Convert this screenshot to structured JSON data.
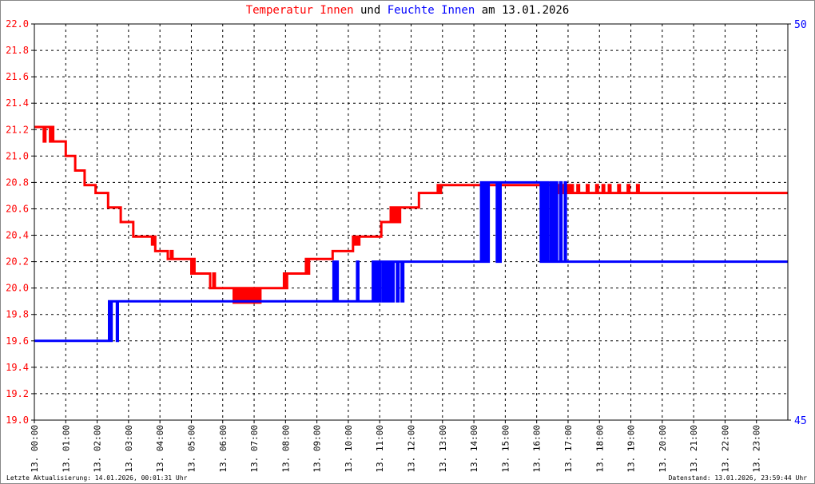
{
  "title": {
    "part1": "Temperatur Innen",
    "part2": " und ",
    "part3": "Feuchte Innen",
    "part4": " am 13.01.2026",
    "color_red": "#ff0000",
    "color_blue": "#0000ff",
    "color_text": "#000000"
  },
  "footer": {
    "left": "Letzte Aktualisierung: 14.01.2026, 00:01:31 Uhr",
    "right": "Datenstand: 13.01.2026, 23:59:44 Uhr"
  },
  "chart_data": {
    "type": "line",
    "xlim": [
      0,
      24
    ],
    "y_left": {
      "min": 19.0,
      "max": 22.0,
      "ticks": [
        "19.0",
        "19.2",
        "19.4",
        "19.6",
        "19.8",
        "20.0",
        "20.2",
        "20.4",
        "20.6",
        "20.8",
        "21.0",
        "21.2",
        "21.4",
        "21.6",
        "21.8",
        "22.0"
      ],
      "color": "#ff0000"
    },
    "y_right": {
      "min": 45,
      "max": 50,
      "ticks": [
        "45",
        "50"
      ],
      "color": "#0000ff"
    },
    "x_ticks": [
      "13. 00:00",
      "13. 01:00",
      "13. 02:00",
      "13. 03:00",
      "13. 04:00",
      "13. 05:00",
      "13. 06:00",
      "13. 07:00",
      "13. 08:00",
      "13. 09:00",
      "13. 10:00",
      "13. 11:00",
      "13. 12:00",
      "13. 13:00",
      "13. 14:00",
      "13. 15:00",
      "13. 16:00",
      "13. 17:00",
      "13. 18:00",
      "13. 19:00",
      "13. 20:00",
      "13. 21:00",
      "13. 22:00",
      "13. 23:00"
    ],
    "grid": true,
    "series": [
      {
        "name": "Temperatur Innen",
        "axis": "left",
        "color": "#ff0000",
        "points": [
          [
            0,
            21.22
          ],
          [
            0.3,
            21.22
          ],
          [
            0.3,
            21.11
          ],
          [
            0.35,
            21.22
          ],
          [
            0.45,
            21.22
          ],
          [
            0.5,
            21.11
          ],
          [
            0.55,
            21.22
          ],
          [
            0.6,
            21.11
          ],
          [
            0.9,
            21.11
          ],
          [
            1.0,
            21.0
          ],
          [
            1.2,
            21.0
          ],
          [
            1.3,
            20.89
          ],
          [
            1.55,
            20.89
          ],
          [
            1.6,
            20.78
          ],
          [
            1.9,
            20.78
          ],
          [
            1.95,
            20.72
          ],
          [
            2.3,
            20.72
          ],
          [
            2.35,
            20.61
          ],
          [
            2.7,
            20.61
          ],
          [
            2.75,
            20.5
          ],
          [
            3.1,
            20.5
          ],
          [
            3.15,
            20.39
          ],
          [
            3.7,
            20.39
          ],
          [
            3.75,
            20.33
          ],
          [
            3.8,
            20.39
          ],
          [
            3.85,
            20.28
          ],
          [
            4.2,
            20.28
          ],
          [
            4.25,
            20.22
          ],
          [
            4.35,
            20.28
          ],
          [
            4.4,
            20.22
          ],
          [
            4.95,
            20.22
          ],
          [
            5.0,
            20.11
          ],
          [
            5.05,
            20.22
          ],
          [
            5.1,
            20.11
          ],
          [
            5.5,
            20.11
          ],
          [
            5.6,
            20.0
          ],
          [
            5.7,
            20.11
          ],
          [
            5.75,
            20.0
          ],
          [
            6.3,
            20.0
          ],
          [
            6.35,
            19.89
          ],
          [
            6.4,
            20.0
          ],
          [
            6.45,
            19.89
          ],
          [
            6.5,
            20.0
          ],
          [
            6.55,
            19.89
          ],
          [
            6.6,
            20.0
          ],
          [
            6.65,
            19.89
          ],
          [
            6.7,
            20.0
          ],
          [
            6.75,
            19.89
          ],
          [
            6.8,
            20.0
          ],
          [
            6.85,
            19.89
          ],
          [
            6.9,
            20.0
          ],
          [
            6.95,
            19.89
          ],
          [
            7.0,
            20.0
          ],
          [
            7.05,
            19.89
          ],
          [
            7.1,
            20.0
          ],
          [
            7.15,
            19.89
          ],
          [
            7.2,
            20.0
          ],
          [
            7.25,
            20.0
          ],
          [
            7.9,
            20.0
          ],
          [
            7.95,
            20.11
          ],
          [
            8.0,
            20.0
          ],
          [
            8.05,
            20.11
          ],
          [
            8.6,
            20.11
          ],
          [
            8.65,
            20.22
          ],
          [
            8.7,
            20.11
          ],
          [
            8.75,
            20.22
          ],
          [
            9.45,
            20.22
          ],
          [
            9.5,
            20.28
          ],
          [
            10.1,
            20.28
          ],
          [
            10.15,
            20.39
          ],
          [
            10.2,
            20.33
          ],
          [
            10.25,
            20.39
          ],
          [
            10.3,
            20.33
          ],
          [
            10.35,
            20.39
          ],
          [
            11.0,
            20.39
          ],
          [
            11.05,
            20.5
          ],
          [
            11.3,
            20.5
          ],
          [
            11.35,
            20.61
          ],
          [
            11.4,
            20.5
          ],
          [
            11.45,
            20.61
          ],
          [
            11.5,
            20.5
          ],
          [
            11.55,
            20.61
          ],
          [
            11.6,
            20.5
          ],
          [
            11.65,
            20.61
          ],
          [
            12.2,
            20.61
          ],
          [
            12.25,
            20.72
          ],
          [
            12.8,
            20.72
          ],
          [
            12.85,
            20.78
          ],
          [
            12.9,
            20.72
          ],
          [
            12.95,
            20.78
          ],
          [
            16.6,
            20.78
          ],
          [
            16.65,
            20.72
          ],
          [
            16.7,
            20.78
          ],
          [
            16.75,
            20.72
          ],
          [
            16.8,
            20.78
          ],
          [
            16.85,
            20.72
          ],
          [
            16.9,
            20.78
          ],
          [
            16.95,
            20.72
          ],
          [
            17.0,
            20.78
          ],
          [
            17.05,
            20.72
          ],
          [
            17.1,
            20.78
          ],
          [
            17.15,
            20.72
          ],
          [
            17.3,
            20.78
          ],
          [
            17.35,
            20.72
          ],
          [
            17.6,
            20.78
          ],
          [
            17.65,
            20.72
          ],
          [
            17.9,
            20.78
          ],
          [
            17.95,
            20.72
          ],
          [
            18.1,
            20.78
          ],
          [
            18.15,
            20.72
          ],
          [
            18.3,
            20.78
          ],
          [
            18.35,
            20.72
          ],
          [
            18.6,
            20.78
          ],
          [
            18.65,
            20.72
          ],
          [
            18.9,
            20.78
          ],
          [
            18.95,
            20.72
          ],
          [
            19.2,
            20.78
          ],
          [
            19.25,
            20.72
          ],
          [
            24,
            20.72
          ]
        ]
      },
      {
        "name": "Feuchte Innen",
        "axis": "right",
        "color": "#0000ff",
        "points": [
          [
            0,
            46.0
          ],
          [
            2.35,
            46.0
          ],
          [
            2.38,
            46.5
          ],
          [
            2.42,
            46.0
          ],
          [
            2.46,
            46.5
          ],
          [
            2.6,
            46.5
          ],
          [
            2.63,
            46.0
          ],
          [
            2.66,
            46.5
          ],
          [
            9.5,
            46.5
          ],
          [
            9.53,
            47.0
          ],
          [
            9.58,
            46.5
          ],
          [
            9.62,
            47.0
          ],
          [
            9.66,
            46.5
          ],
          [
            10.25,
            46.5
          ],
          [
            10.28,
            47.0
          ],
          [
            10.32,
            46.5
          ],
          [
            10.75,
            46.5
          ],
          [
            10.78,
            47.0
          ],
          [
            10.82,
            46.5
          ],
          [
            10.86,
            47.0
          ],
          [
            10.9,
            46.5
          ],
          [
            10.94,
            47.0
          ],
          [
            10.98,
            46.5
          ],
          [
            11.02,
            47.0
          ],
          [
            11.1,
            46.5
          ],
          [
            11.14,
            47.0
          ],
          [
            11.2,
            46.5
          ],
          [
            11.24,
            47.0
          ],
          [
            11.3,
            46.5
          ],
          [
            11.34,
            47.0
          ],
          [
            11.4,
            46.5
          ],
          [
            11.44,
            47.0
          ],
          [
            11.55,
            46.5
          ],
          [
            11.6,
            47.0
          ],
          [
            11.7,
            46.5
          ],
          [
            11.75,
            47.0
          ],
          [
            14.2,
            47.0
          ],
          [
            14.23,
            48.0
          ],
          [
            14.27,
            47.0
          ],
          [
            14.31,
            48.0
          ],
          [
            14.35,
            47.0
          ],
          [
            14.39,
            48.0
          ],
          [
            14.43,
            47.0
          ],
          [
            14.47,
            48.0
          ],
          [
            14.7,
            48.0
          ],
          [
            14.73,
            47.0
          ],
          [
            14.77,
            48.0
          ],
          [
            14.81,
            47.0
          ],
          [
            14.85,
            48.0
          ],
          [
            16.1,
            48.0
          ],
          [
            16.13,
            47.0
          ],
          [
            16.17,
            48.0
          ],
          [
            16.21,
            47.0
          ],
          [
            16.25,
            48.0
          ],
          [
            16.29,
            47.0
          ],
          [
            16.33,
            48.0
          ],
          [
            16.37,
            47.0
          ],
          [
            16.45,
            48.0
          ],
          [
            16.49,
            47.0
          ],
          [
            16.53,
            48.0
          ],
          [
            16.57,
            47.0
          ],
          [
            16.61,
            48.0
          ],
          [
            16.65,
            47.0
          ],
          [
            16.75,
            48.0
          ],
          [
            16.79,
            47.0
          ],
          [
            16.9,
            48.0
          ],
          [
            16.93,
            47.0
          ],
          [
            24,
            47.0
          ]
        ]
      }
    ]
  }
}
